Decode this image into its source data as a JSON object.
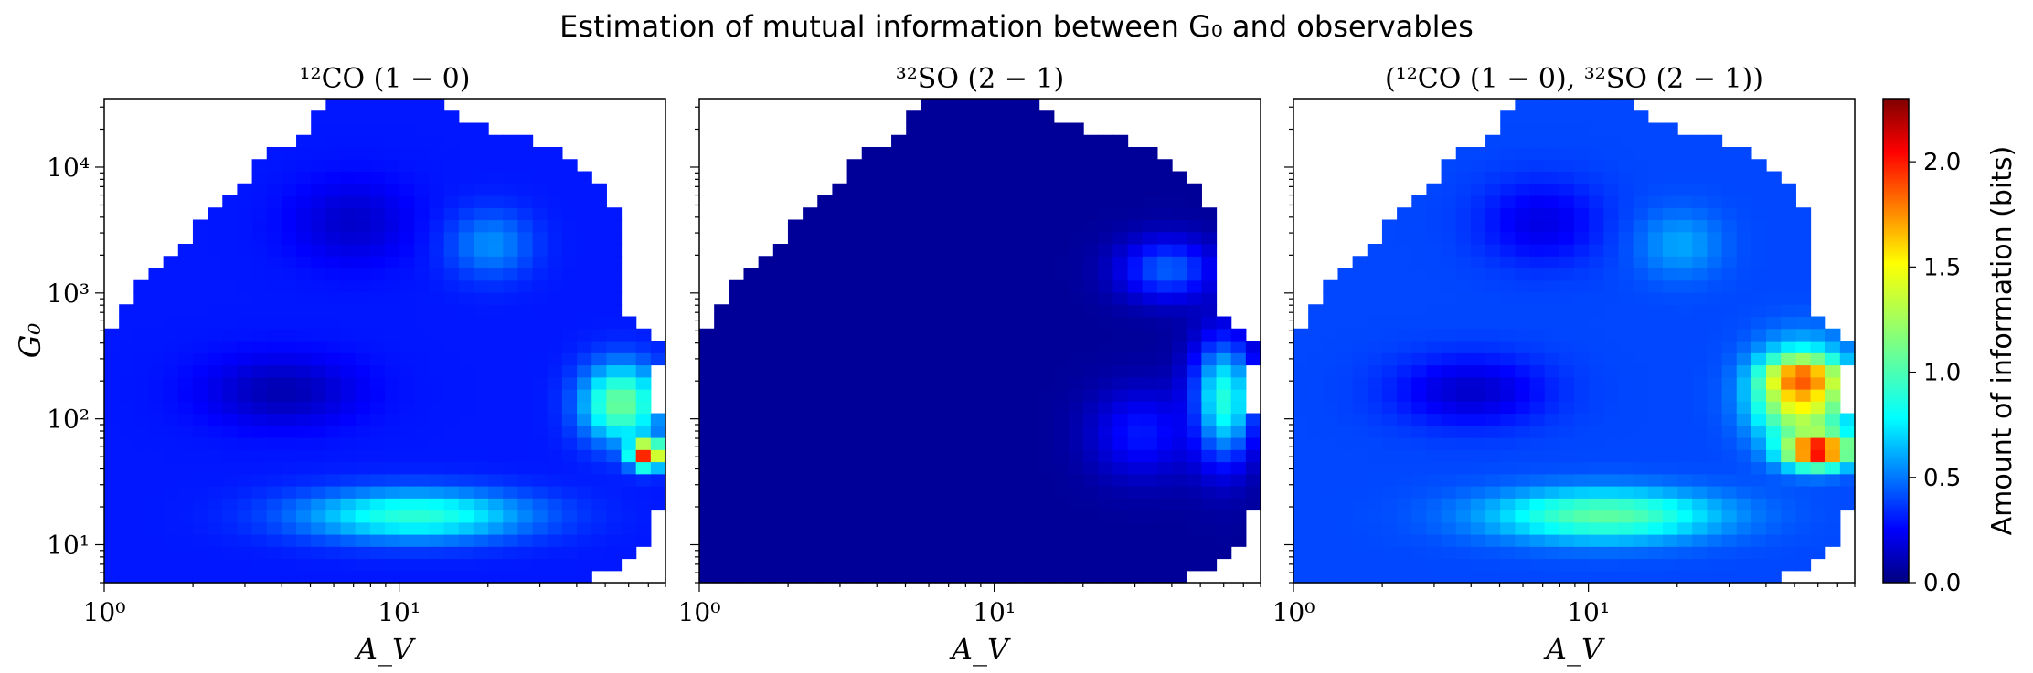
{
  "figure": {
    "title": "Estimation of mutual information between G₀ and observables"
  },
  "chart_data": [
    {
      "type": "heatmap",
      "title": "¹²CO (1 − 0)",
      "xlabel": "A_V",
      "ylabel": "G₀",
      "x_scale": "log",
      "y_scale": "log",
      "xlim": [
        1,
        80
      ],
      "ylim": [
        5,
        35000
      ],
      "x_ticks": [
        {
          "value": 1,
          "label": "10⁰"
        },
        {
          "value": 10,
          "label": "10¹"
        }
      ],
      "y_ticks": [
        {
          "value": 10,
          "label": "10¹"
        },
        {
          "value": 100,
          "label": "10²"
        },
        {
          "value": 1000,
          "label": "10³"
        },
        {
          "value": 10000,
          "label": "10⁴"
        }
      ],
      "features": [
        {
          "av": [
            4,
            32
          ],
          "g0": [
            10,
            30
          ],
          "value": 0.9
        },
        {
          "av": [
            40,
            80
          ],
          "g0": [
            60,
            300
          ],
          "value": 1.1
        },
        {
          "av": [
            60,
            80
          ],
          "g0": [
            40,
            70
          ],
          "value": 2.1
        },
        {
          "av": [
            2,
            8
          ],
          "g0": [
            80,
            350
          ],
          "value": 0.1
        },
        {
          "av": [
            4,
            12
          ],
          "g0": [
            1500,
            9000
          ],
          "value": 0.15
        },
        {
          "av": [
            14,
            30
          ],
          "g0": [
            1200,
            5000
          ],
          "value": 0.55
        }
      ],
      "base_value": 0.3
    },
    {
      "type": "heatmap",
      "title": "³²SO (2 − 1)",
      "xlabel": "A_V",
      "x_scale": "log",
      "y_scale": "log",
      "xlim": [
        1,
        80
      ],
      "ylim": [
        5,
        35000
      ],
      "x_ticks": [
        {
          "value": 1,
          "label": "10⁰"
        },
        {
          "value": 10,
          "label": "10¹"
        }
      ],
      "features": [
        {
          "av": [
            45,
            80
          ],
          "g0": [
            40,
            500
          ],
          "value": 0.9
        },
        {
          "av": [
            25,
            60
          ],
          "g0": [
            800,
            3000
          ],
          "value": 0.45
        },
        {
          "av": [
            20,
            50
          ],
          "g0": [
            30,
            200
          ],
          "value": 0.3
        }
      ],
      "base_value": 0.05
    },
    {
      "type": "heatmap",
      "title": "(¹²CO (1 − 0), ³²SO (2 − 1))",
      "xlabel": "A_V",
      "x_scale": "log",
      "y_scale": "log",
      "xlim": [
        1,
        80
      ],
      "ylim": [
        5,
        35000
      ],
      "x_ticks": [
        {
          "value": 1,
          "label": "10⁰"
        },
        {
          "value": 10,
          "label": "10¹"
        }
      ],
      "features": [
        {
          "av": [
            4,
            32
          ],
          "g0": [
            10,
            30
          ],
          "value": 1.05
        },
        {
          "av": [
            35,
            80
          ],
          "g0": [
            60,
            400
          ],
          "value": 1.6
        },
        {
          "av": [
            45,
            80
          ],
          "g0": [
            40,
            80
          ],
          "value": 2.2
        },
        {
          "av": [
            40,
            70
          ],
          "g0": [
            150,
            300
          ],
          "value": 1.9
        },
        {
          "av": [
            2,
            8
          ],
          "g0": [
            80,
            350
          ],
          "value": 0.15
        },
        {
          "av": [
            4,
            12
          ],
          "g0": [
            1500,
            9000
          ],
          "value": 0.2
        },
        {
          "av": [
            14,
            30
          ],
          "g0": [
            1200,
            5000
          ],
          "value": 0.6
        }
      ],
      "base_value": 0.4
    }
  ],
  "colorbar": {
    "label": "Amount of information (bits)",
    "range": [
      0.0,
      2.3
    ],
    "colormap": "jet",
    "ticks": [
      {
        "value": 0.0,
        "label": "0.0"
      },
      {
        "value": 0.5,
        "label": "0.5"
      },
      {
        "value": 1.0,
        "label": "1.0"
      },
      {
        "value": 1.5,
        "label": "1.5"
      },
      {
        "value": 2.0,
        "label": "2.0"
      }
    ]
  }
}
